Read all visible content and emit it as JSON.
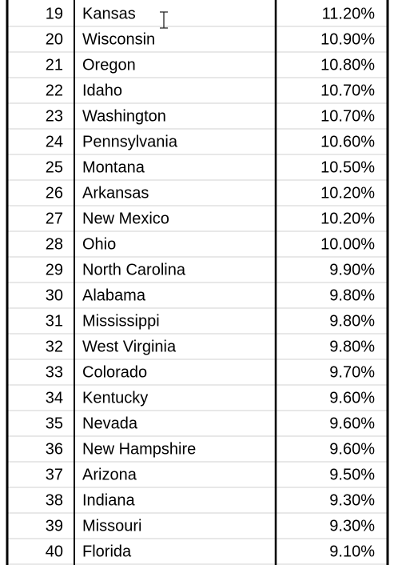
{
  "table": {
    "rows": [
      [
        19,
        "Kansas",
        "11.20%"
      ],
      [
        20,
        "Wisconsin",
        "10.90%"
      ],
      [
        21,
        "Oregon",
        "10.80%"
      ],
      [
        22,
        "Idaho",
        "10.70%"
      ],
      [
        23,
        "Washington",
        "10.70%"
      ],
      [
        24,
        "Pennsylvania",
        "10.60%"
      ],
      [
        25,
        "Montana",
        "10.50%"
      ],
      [
        26,
        "Arkansas",
        "10.20%"
      ],
      [
        27,
        "New Mexico",
        "10.20%"
      ],
      [
        28,
        "Ohio",
        "10.00%"
      ],
      [
        29,
        "North Carolina",
        "9.90%"
      ],
      [
        30,
        "Alabama",
        "9.80%"
      ],
      [
        31,
        "Mississippi",
        "9.80%"
      ],
      [
        32,
        "West Virginia",
        "9.80%"
      ],
      [
        33,
        "Colorado",
        "9.70%"
      ],
      [
        34,
        "Kentucky",
        "9.60%"
      ],
      [
        35,
        "Nevada",
        "9.60%"
      ],
      [
        36,
        "New Hampshire",
        "9.60%"
      ],
      [
        37,
        "Arizona",
        "9.50%"
      ],
      [
        38,
        "Indiana",
        "9.30%"
      ],
      [
        39,
        "Missouri",
        "9.30%"
      ],
      [
        40,
        "Florida",
        "9.10%"
      ]
    ]
  }
}
